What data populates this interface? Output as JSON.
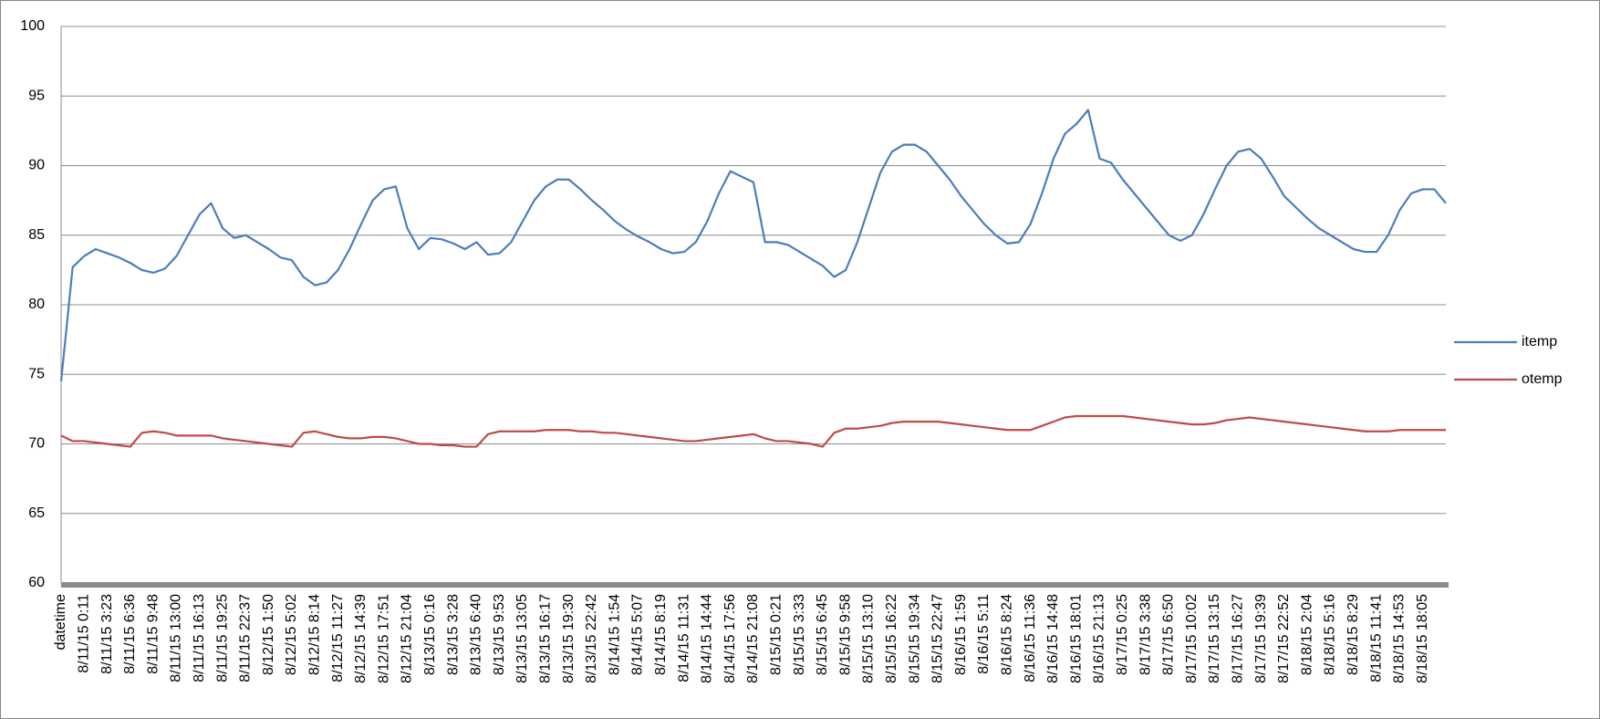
{
  "chart_data": {
    "type": "line",
    "categories": [
      "datetime",
      null,
      "8/11/15 0:11",
      null,
      "8/11/15 3:23",
      null,
      "8/11/15 6:36",
      null,
      "8/11/15 9:48",
      null,
      "8/11/15 13:00",
      null,
      "8/11/15 16:13",
      null,
      "8/11/15 19:25",
      null,
      "8/11/15 22:37",
      null,
      "8/12/15 1:50",
      null,
      "8/12/15 5:02",
      null,
      "8/12/15 8:14",
      null,
      "8/12/15 11:27",
      null,
      "8/12/15 14:39",
      null,
      "8/12/15 17:51",
      null,
      "8/12/15 21:04",
      null,
      "8/13/15 0:16",
      null,
      "8/13/15 3:28",
      null,
      "8/13/15 6:40",
      null,
      "8/13/15 9:53",
      null,
      "8/13/15 13:05",
      null,
      "8/13/15 16:17",
      null,
      "8/13/15 19:30",
      null,
      "8/13/15 22:42",
      null,
      "8/14/15 1:54",
      null,
      "8/14/15 5:07",
      null,
      "8/14/15 8:19",
      null,
      "8/14/15 11:31",
      null,
      "8/14/15 14:44",
      null,
      "8/14/15 17:56",
      null,
      "8/14/15 21:08",
      null,
      "8/15/15 0:21",
      null,
      "8/15/15 3:33",
      null,
      "8/15/15 6:45",
      null,
      "8/15/15 9:58",
      null,
      "8/15/15 13:10",
      null,
      "8/15/15 16:22",
      null,
      "8/15/15 19:34",
      null,
      "8/15/15 22:47",
      null,
      "8/16/15 1:59",
      null,
      "8/16/15 5:11",
      null,
      "8/16/15 8:24",
      null,
      "8/16/15 11:36",
      null,
      "8/16/15 14:48",
      null,
      "8/16/15 18:01",
      null,
      "8/16/15 21:13",
      null,
      "8/17/15 0:25",
      null,
      "8/17/15 3:38",
      null,
      "8/17/15 6:50",
      null,
      "8/17/15 10:02",
      null,
      "8/17/15 13:15",
      null,
      "8/17/15 16:27",
      null,
      "8/17/15 19:39",
      null,
      "8/17/15 22:52",
      null,
      "8/18/15 2:04",
      null,
      "8/18/15 5:16",
      null,
      "8/18/15 8:29",
      null,
      "8/18/15 11:41",
      null,
      "8/18/15 14:53",
      null,
      "8/18/15 18:05",
      null,
      null
    ],
    "series": [
      {
        "name": "itemp",
        "color": "#4a7ebb",
        "values": [
          74.5,
          82.7,
          83.5,
          84.0,
          83.7,
          83.4,
          83.0,
          82.5,
          82.3,
          82.6,
          83.5,
          85.0,
          86.5,
          87.3,
          85.5,
          84.8,
          85.0,
          84.5,
          84.0,
          83.4,
          83.2,
          82.0,
          81.4,
          81.6,
          82.5,
          84.0,
          85.8,
          87.5,
          88.3,
          88.5,
          85.5,
          84.0,
          84.8,
          84.7,
          84.4,
          84.0,
          84.5,
          83.6,
          83.7,
          84.5,
          86.0,
          87.5,
          88.5,
          89.0,
          89.0,
          88.3,
          87.5,
          86.8,
          86.0,
          85.4,
          84.9,
          84.5,
          84.0,
          83.7,
          83.8,
          84.5,
          86.0,
          88.0,
          89.6,
          89.2,
          88.8,
          84.5,
          84.5,
          84.3,
          83.8,
          83.3,
          82.8,
          82.0,
          82.5,
          84.5,
          87.0,
          89.5,
          91.0,
          91.5,
          91.5,
          91.0,
          90.0,
          89.0,
          87.8,
          86.8,
          85.8,
          85.0,
          84.4,
          84.5,
          85.8,
          88.0,
          90.5,
          92.3,
          93.0,
          94.0,
          90.5,
          90.2,
          89.0,
          88.0,
          87.0,
          86.0,
          85.0,
          84.6,
          85.0,
          86.5,
          88.3,
          90.0,
          91.0,
          91.2,
          90.5,
          89.2,
          87.8,
          87.0,
          86.2,
          85.5,
          85.0,
          84.5,
          84.0,
          83.8,
          83.8,
          85.0,
          86.8,
          88.0,
          88.3,
          88.3,
          87.3
        ]
      },
      {
        "name": "otemp",
        "color": "#be4b48",
        "values": [
          70.6,
          70.2,
          70.2,
          70.1,
          70.0,
          69.9,
          69.8,
          70.8,
          70.9,
          70.8,
          70.6,
          70.6,
          70.6,
          70.6,
          70.4,
          70.3,
          70.2,
          70.1,
          70.0,
          69.9,
          69.8,
          70.8,
          70.9,
          70.7,
          70.5,
          70.4,
          70.4,
          70.5,
          70.5,
          70.4,
          70.2,
          70.0,
          70.0,
          69.9,
          69.9,
          69.8,
          69.8,
          70.7,
          70.9,
          70.9,
          70.9,
          70.9,
          71.0,
          71.0,
          71.0,
          70.9,
          70.9,
          70.8,
          70.8,
          70.7,
          70.6,
          70.5,
          70.4,
          70.3,
          70.2,
          70.2,
          70.3,
          70.4,
          70.5,
          70.6,
          70.7,
          70.4,
          70.2,
          70.2,
          70.1,
          70.0,
          69.8,
          70.8,
          71.1,
          71.1,
          71.2,
          71.3,
          71.5,
          71.6,
          71.6,
          71.6,
          71.6,
          71.5,
          71.4,
          71.3,
          71.2,
          71.1,
          71.0,
          71.0,
          71.0,
          71.3,
          71.6,
          71.9,
          72.0,
          72.0,
          72.0,
          72.0,
          72.0,
          71.9,
          71.8,
          71.7,
          71.6,
          71.5,
          71.4,
          71.4,
          71.5,
          71.7,
          71.8,
          71.9,
          71.8,
          71.7,
          71.6,
          71.5,
          71.4,
          71.3,
          71.2,
          71.1,
          71.0,
          70.9,
          70.9,
          70.9,
          71.0,
          71.0,
          71.0,
          71.0,
          71.0
        ]
      }
    ],
    "ylim": [
      60,
      100
    ],
    "yticks": [
      60,
      65,
      70,
      75,
      80,
      85,
      90,
      95,
      100
    ],
    "grid": true,
    "legend": "right"
  }
}
